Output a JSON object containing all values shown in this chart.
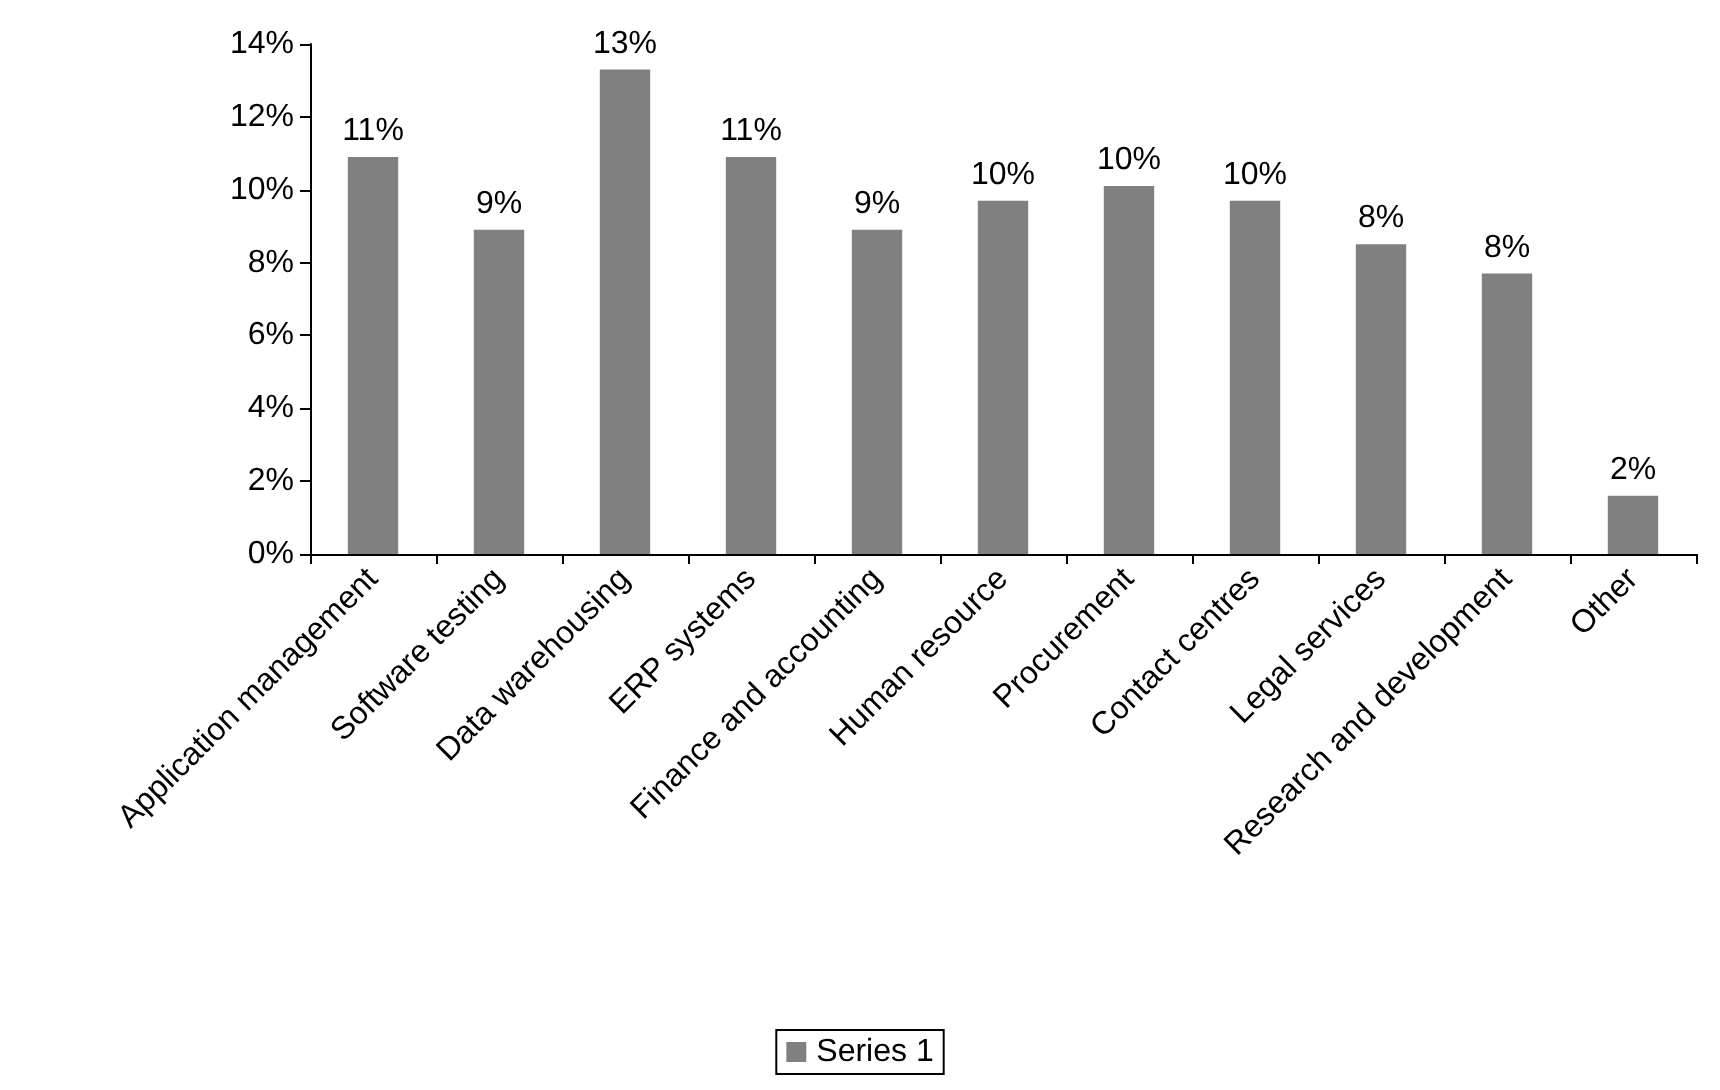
{
  "chart_data": {
    "type": "bar",
    "categories": [
      "Application management",
      "Software testing",
      "Data warehousing",
      "ERP systems",
      "Finance and accounting",
      "Human resource",
      "Procurement",
      "Contact centres",
      "Legal services",
      "Research and development",
      "Other"
    ],
    "series": [
      {
        "name": "Series 1",
        "color": "#808080",
        "values": [
          10.9,
          8.9,
          13.3,
          10.9,
          8.9,
          9.7,
          10.1,
          9.7,
          8.5,
          7.7,
          1.6
        ],
        "value_labels": [
          "11%",
          "9%",
          "13%",
          "11%",
          "9%",
          "10%",
          "10%",
          "10%",
          "8%",
          "8%",
          "2%"
        ]
      }
    ],
    "ylim": [
      0,
      14
    ],
    "yticks": [
      {
        "value": 0,
        "label": "0%"
      },
      {
        "value": 2,
        "label": "2%"
      },
      {
        "value": 4,
        "label": "4%"
      },
      {
        "value": 6,
        "label": "6%"
      },
      {
        "value": 8,
        "label": "8%"
      },
      {
        "value": 10,
        "label": "10%"
      },
      {
        "value": 12,
        "label": "12%"
      },
      {
        "value": 14,
        "label": "14%"
      }
    ],
    "grid": false,
    "legend": "bottom"
  }
}
